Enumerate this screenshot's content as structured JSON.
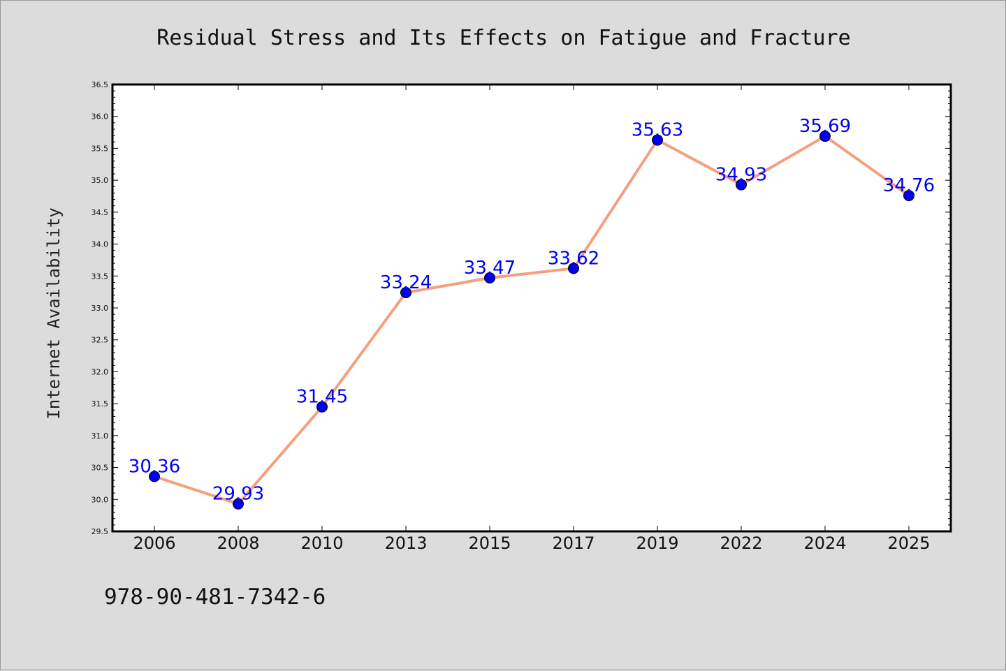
{
  "chart_data": {
    "type": "line",
    "title": "Residual Stress and Its Effects on Fatigue and Fracture",
    "xlabel": "",
    "ylabel": "Internet Availability",
    "categories": [
      "2006",
      "2008",
      "2010",
      "2013",
      "2015",
      "2017",
      "2019",
      "2022",
      "2024",
      "2025"
    ],
    "series": [
      {
        "values": [
          30.36,
          29.93,
          31.45,
          33.24,
          33.47,
          33.62,
          35.63,
          34.93,
          35.69,
          34.76
        ],
        "data_labels": [
          "30.36",
          "29.93",
          "31.45",
          "33.24",
          "33.47",
          "33.62",
          "35.63",
          "34.93",
          "35.69",
          "34.76"
        ],
        "line_color": "#f4a07e",
        "marker_color": "#0000ee"
      }
    ],
    "ylim": [
      29.5,
      36.5
    ],
    "yticks": [
      "29.5",
      "30.0",
      "30.5",
      "31.0",
      "31.5",
      "32.0",
      "32.5",
      "33.0",
      "33.5",
      "34.0",
      "34.5",
      "35.0",
      "35.5",
      "36.0",
      "36.5"
    ],
    "grid": false,
    "legend": "none"
  },
  "footer": {
    "isbn": "978-90-481-7342-6"
  },
  "colors": {
    "background": "#dcdcdc",
    "plot_area": "#ffffff",
    "axis": "#000000",
    "label": "#0000ee"
  }
}
